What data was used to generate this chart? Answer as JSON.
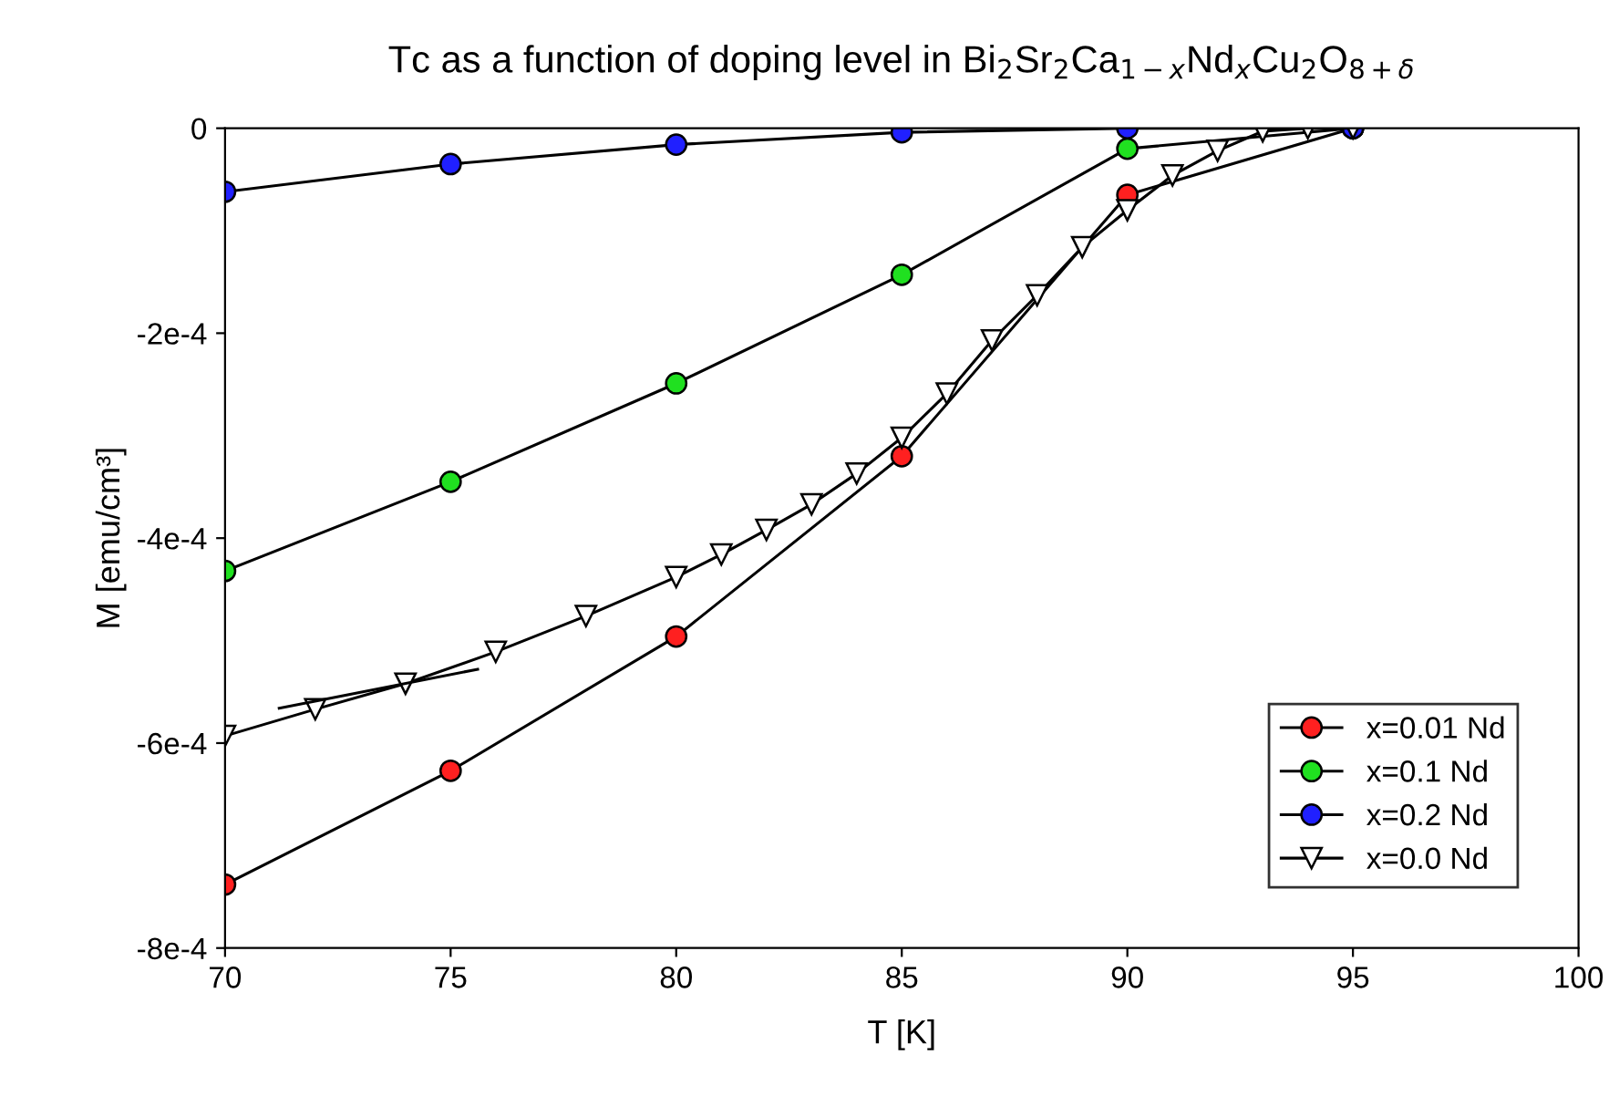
{
  "chart_data": {
    "type": "line",
    "title": "Tc as a function of doping level in Bi$_{2}$Sr$_{2}$Ca$_{1−x}$Nd$_{x}$Cu$_{2}$O$_{8+δ}$",
    "xlabel": "T [K]",
    "ylabel": "M [emu/cm³]",
    "xlim": [
      70,
      100
    ],
    "xticks": [
      70,
      75,
      80,
      85,
      90,
      95,
      100
    ],
    "ylim": [
      -0.0008,
      0
    ],
    "yticks": [
      {
        "value": -0.0008,
        "label": "-8e-4"
      },
      {
        "value": -0.0006,
        "label": "-6e-4"
      },
      {
        "value": -0.0004,
        "label": "-4e-4"
      },
      {
        "value": -0.0002,
        "label": "-2e-4"
      },
      {
        "value": 0,
        "label": "0"
      }
    ],
    "grid": false,
    "legend": "bottom right",
    "line_style": "solid",
    "series": [
      {
        "name": "x=0.01 Nd",
        "color": "#ff2020",
        "marker": "circle",
        "x": [
          70,
          75,
          80,
          85,
          90,
          95
        ],
        "values": [
          -0.000738,
          -0.000627,
          -0.000496,
          -0.00032,
          -6.5e-05,
          0
        ]
      },
      {
        "name": "x=0.1 Nd",
        "color": "#20e020",
        "marker": "circle",
        "x": [
          70,
          75,
          80,
          85,
          90,
          95
        ],
        "values": [
          -0.000432,
          -0.000345,
          -0.000249,
          -0.000143,
          -2e-05,
          0
        ]
      },
      {
        "name": "x=0.2 Nd",
        "color": "#2020ff",
        "marker": "circle",
        "x": [
          70,
          75,
          80,
          85,
          90,
          95
        ],
        "values": [
          -6.2e-05,
          -3.5e-05,
          -1.6e-05,
          -4e-06,
          0,
          0
        ]
      },
      {
        "name": "x=0.0 Nd",
        "color": "#ffffff",
        "marker": "triangle",
        "x": [
          70,
          72,
          74,
          76,
          78,
          80,
          81,
          82,
          83,
          84,
          85,
          86,
          87,
          88,
          89,
          90,
          91,
          92,
          93,
          94,
          95
        ],
        "values": [
          -0.000593,
          -0.000567,
          -0.000542,
          -0.000511,
          -0.000476,
          -0.000438,
          -0.000416,
          -0.000392,
          -0.000367,
          -0.000337,
          -0.000302,
          -0.000259,
          -0.000207,
          -0.000163,
          -0.000116,
          -8e-05,
          -4.6e-05,
          -2.2e-05,
          -3e-06,
          0,
          0
        ]
      },
      {
        "color": "#000000",
        "marker": "none",
        "x": [
          71.2,
          75.6
        ],
        "values": [
          -0.000566,
          -0.000528
        ]
      }
    ]
  }
}
